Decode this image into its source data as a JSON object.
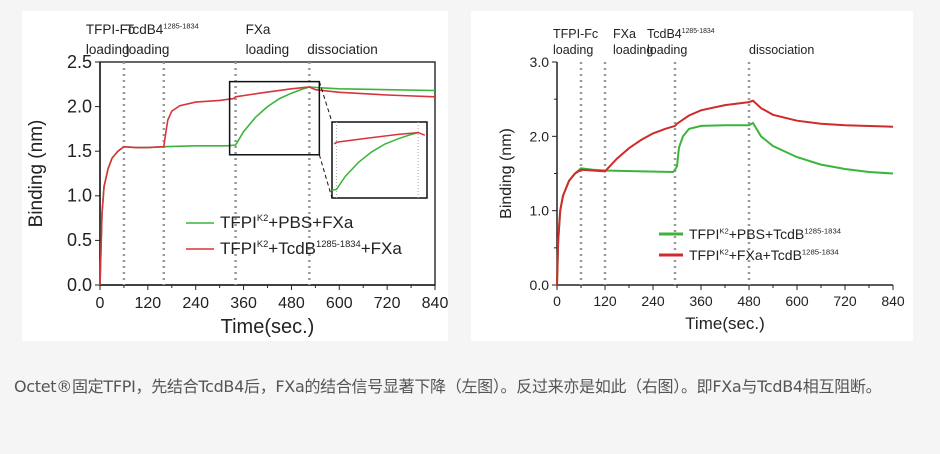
{
  "caption": "Octet®固定TFPI，先结合TcdB4后，FXa的结合信号显著下降（左图）。反过来亦是如此（右图）。即FXa与TcdB4相互阻断。",
  "chart_data": [
    {
      "type": "line",
      "xlabel": "Time(sec.)",
      "ylabel": "Binding (nm)",
      "xlim": [
        0,
        840
      ],
      "ylim": [
        0,
        2.5
      ],
      "xticks": [
        0,
        120,
        240,
        360,
        480,
        600,
        720,
        840
      ],
      "yticks": [
        "0.0",
        "0.5",
        "1.0",
        "1.5",
        "2.0",
        "2.5"
      ],
      "phase_boundaries": [
        60,
        160,
        340,
        525
      ],
      "phases": [
        {
          "line1": "TFPI-Fc",
          "sup": "",
          "line2": "loading",
          "x": 60
        },
        {
          "line1": "TcdB4",
          "sup": "1285-1834",
          "line2": "loading",
          "x": 160
        },
        {
          "line1": "FXa",
          "sup": "",
          "line2": "loading",
          "x": 340
        },
        {
          "line1": "",
          "sup": "",
          "line2": "dissociation",
          "x": 600
        }
      ],
      "zoom_inset": {
        "x_range": [
          325,
          550
        ],
        "y_range": [
          1.46,
          2.28
        ]
      },
      "legend_position": "bottom-right",
      "series": [
        {
          "name": "TFPI K2 +PBS+FXa",
          "label": [
            [
              "TFPI",
              ""
            ],
            [
              "K2",
              "sup"
            ],
            [
              "+PBS+FXa",
              ""
            ]
          ],
          "color": "#3cb43c",
          "x": [
            0,
            5,
            10,
            20,
            30,
            45,
            60,
            90,
            120,
            160,
            240,
            320,
            340,
            360,
            390,
            420,
            450,
            480,
            510,
            525,
            560,
            600,
            720,
            840
          ],
          "y": [
            0,
            0.8,
            1.1,
            1.3,
            1.42,
            1.5,
            1.55,
            1.54,
            1.54,
            1.55,
            1.56,
            1.56,
            1.57,
            1.72,
            1.88,
            2.0,
            2.09,
            2.15,
            2.2,
            2.22,
            2.21,
            2.2,
            2.19,
            2.18
          ]
        },
        {
          "name": "TFPI K2 +TcdB 1285-1834 +FXa",
          "label": [
            [
              "TFPI",
              ""
            ],
            [
              "K2",
              "sup"
            ],
            [
              "+TcdB",
              ""
            ],
            [
              "1285-1834",
              "sup"
            ],
            [
              "+FXa",
              ""
            ]
          ],
          "color": "#d8343c",
          "x": [
            0,
            5,
            10,
            20,
            30,
            45,
            60,
            90,
            120,
            160,
            163,
            170,
            180,
            200,
            240,
            300,
            335,
            340,
            400,
            480,
            525,
            540,
            600,
            720,
            840
          ],
          "y": [
            0,
            0.8,
            1.1,
            1.3,
            1.42,
            1.5,
            1.55,
            1.54,
            1.54,
            1.55,
            1.65,
            1.85,
            1.95,
            2.01,
            2.05,
            2.07,
            2.09,
            2.11,
            2.15,
            2.2,
            2.22,
            2.19,
            2.16,
            2.13,
            2.11
          ]
        }
      ]
    },
    {
      "type": "line",
      "xlabel": "Time(sec.)",
      "ylabel": "Binding (nm)",
      "xlim": [
        0,
        840
      ],
      "ylim": [
        0,
        3.0
      ],
      "xticks": [
        0,
        120,
        240,
        360,
        480,
        600,
        720,
        840
      ],
      "yticks": [
        "0.0",
        "1.0",
        "2.0",
        "3.0"
      ],
      "phase_boundaries": [
        60,
        120,
        295,
        480
      ],
      "phases": [
        {
          "line1": "TFPI-Fc",
          "sup": "",
          "line2": "loading",
          "x": 60
        },
        {
          "line1": "FXa",
          "sup": "",
          "line2": "loading",
          "x": 120
        },
        {
          "line1": "TcdB4",
          "sup": "1285-1834",
          "line2": "loading",
          "x": 295
        },
        {
          "line1": "",
          "sup": "",
          "line2": "dissociation",
          "x": 560
        }
      ],
      "legend_position": "bottom-right",
      "series": [
        {
          "name": "TFPI K2 +PBS+TcdB 1285-1834",
          "label": [
            [
              "TFPI",
              ""
            ],
            [
              "K2",
              "sup"
            ],
            [
              "+PBS+TcdB",
              ""
            ],
            [
              "1285-1834",
              "sup"
            ]
          ],
          "color": "#3cb43c",
          "x": [
            0,
            3,
            8,
            15,
            30,
            45,
            60,
            90,
            120,
            200,
            290,
            295,
            300,
            305,
            315,
            330,
            360,
            420,
            480,
            490,
            510,
            540,
            600,
            660,
            720,
            780,
            840
          ],
          "y": [
            0,
            0.6,
            1.0,
            1.2,
            1.4,
            1.5,
            1.57,
            1.55,
            1.54,
            1.53,
            1.52,
            1.55,
            1.6,
            1.85,
            2.0,
            2.1,
            2.14,
            2.15,
            2.15,
            2.18,
            2.0,
            1.87,
            1.72,
            1.62,
            1.56,
            1.52,
            1.5
          ]
        },
        {
          "name": "TFPI K2 +FXa+TcdB 1285-1834",
          "label": [
            [
              "TFPI",
              ""
            ],
            [
              "K2",
              "sup"
            ],
            [
              "+FXa+TcdB",
              ""
            ],
            [
              "1285-1834",
              "sup"
            ]
          ],
          "color": "#d02a2a",
          "x": [
            0,
            3,
            8,
            15,
            30,
            45,
            60,
            120,
            150,
            180,
            210,
            240,
            270,
            295,
            300,
            330,
            360,
            420,
            480,
            490,
            510,
            540,
            600,
            660,
            720,
            840
          ],
          "y": [
            0,
            0.6,
            1.0,
            1.2,
            1.4,
            1.5,
            1.55,
            1.53,
            1.7,
            1.84,
            1.95,
            2.04,
            2.1,
            2.14,
            2.17,
            2.28,
            2.35,
            2.42,
            2.46,
            2.48,
            2.38,
            2.29,
            2.21,
            2.17,
            2.15,
            2.13
          ]
        }
      ]
    }
  ]
}
